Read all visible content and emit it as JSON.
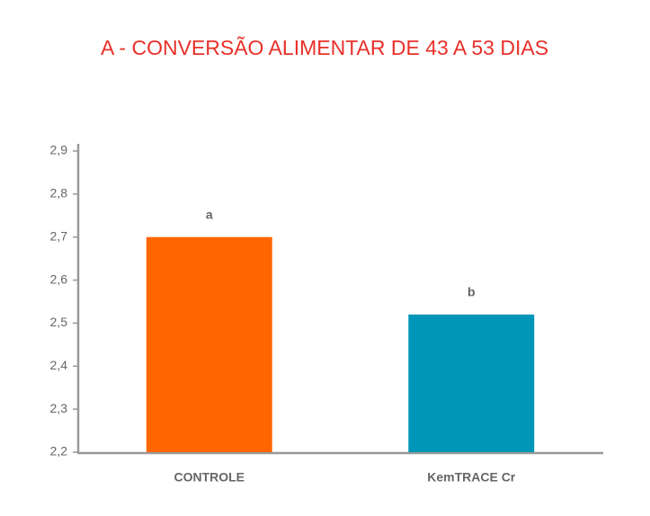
{
  "chart_data": {
    "type": "bar",
    "title": "A - CONVERSÃO ALIMENTAR DE 43 A 53 DIAS",
    "categories": [
      "CONTROLE",
      "KemTRACE Cr"
    ],
    "values": [
      2.7,
      2.52
    ],
    "colors": [
      "#ff6600",
      "#0096b8"
    ],
    "annotations": [
      "a",
      "b"
    ],
    "ylim": [
      2.2,
      2.9
    ],
    "yticks": [
      {
        "value": 2.2,
        "label": "2,2"
      },
      {
        "value": 2.3,
        "label": "2,3"
      },
      {
        "value": 2.4,
        "label": "2,4"
      },
      {
        "value": 2.5,
        "label": "2,5"
      },
      {
        "value": 2.6,
        "label": "2,6"
      },
      {
        "value": 2.7,
        "label": "2,7"
      },
      {
        "value": 2.8,
        "label": "2,8"
      },
      {
        "value": 2.9,
        "label": "2,9"
      }
    ],
    "grid": false
  }
}
